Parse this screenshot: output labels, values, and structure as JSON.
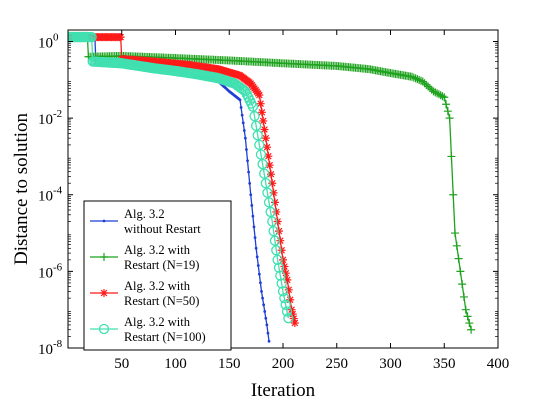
{
  "chart_data": {
    "type": "line",
    "xlabel": "Iteration",
    "ylabel": "Distance to solution",
    "xlim": [
      0,
      400
    ],
    "ylim_log10": [
      -8,
      0.3
    ],
    "yscale": "log",
    "grid": false,
    "legend_position": "bottom-left",
    "x_ticks": [
      50,
      100,
      150,
      200,
      250,
      300,
      350,
      400
    ],
    "x_tick_labels": [
      "50",
      "100",
      "150",
      "200",
      "250",
      "300",
      "350",
      "400"
    ],
    "y_ticks": [
      {
        "base": "10",
        "exp": "0",
        "value": 1
      },
      {
        "base": "10",
        "exp": "-2",
        "value": 0.01
      },
      {
        "base": "10",
        "exp": "-4",
        "value": 0.0001
      },
      {
        "base": "10",
        "exp": "-6",
        "value": 1e-06
      },
      {
        "base": "10",
        "exp": "-8",
        "value": 1e-08
      }
    ],
    "series": [
      {
        "name_line1": "Alg. 3.2",
        "name_line2": "without Restart",
        "color": "#1f3fd6",
        "marker": "dot",
        "x": [
          1,
          25,
          26,
          40,
          60,
          80,
          100,
          120,
          140,
          150,
          160,
          165,
          170,
          175,
          180,
          185,
          187
        ],
        "y": [
          1.3,
          1.3,
          0.25,
          0.3,
          0.25,
          0.2,
          0.17,
          0.13,
          0.09,
          0.05,
          0.03,
          0.003,
          0.0001,
          4e-06,
          3e-07,
          4e-08,
          1.5e-08
        ]
      },
      {
        "name_line1": "Alg. 3.2 with",
        "name_line2": "Restart (N=19)",
        "color": "#1fa31f",
        "marker": "plus",
        "x": [
          1,
          18,
          19,
          50,
          100,
          150,
          200,
          250,
          280,
          300,
          320,
          330,
          340,
          350,
          355,
          360,
          365,
          370,
          375
        ],
        "y": [
          1.4,
          1.4,
          0.4,
          0.42,
          0.37,
          0.32,
          0.27,
          0.23,
          0.19,
          0.15,
          0.12,
          0.09,
          0.05,
          0.035,
          0.01,
          1e-05,
          1e-06,
          1e-07,
          3e-08
        ]
      },
      {
        "name_line1": "Alg. 3.2 with",
        "name_line2": "Restart (N=50)",
        "color": "#ff1a1a",
        "marker": "asterisk",
        "x": [
          1,
          49,
          50,
          80,
          110,
          140,
          160,
          170,
          178,
          184,
          190,
          195,
          200,
          204,
          208,
          211
        ],
        "y": [
          1.3,
          1.3,
          0.35,
          0.3,
          0.25,
          0.19,
          0.13,
          0.08,
          0.04,
          0.003,
          0.0002,
          2e-05,
          2e-06,
          6e-07,
          1e-07,
          4.5e-08
        ]
      },
      {
        "name_line1": "Alg. 3.2 with",
        "name_line2": "Restart (N=100)",
        "color": "#40e0b0",
        "marker": "circle",
        "x": [
          1,
          22,
          23,
          50,
          80,
          100,
          120,
          140,
          155,
          165,
          172,
          178,
          184,
          190,
          195,
          200,
          205
        ],
        "y": [
          1.3,
          1.3,
          0.3,
          0.27,
          0.2,
          0.17,
          0.14,
          0.11,
          0.08,
          0.05,
          0.02,
          0.002,
          0.0002,
          2e-05,
          2e-06,
          3e-07,
          6e-08
        ]
      }
    ]
  }
}
